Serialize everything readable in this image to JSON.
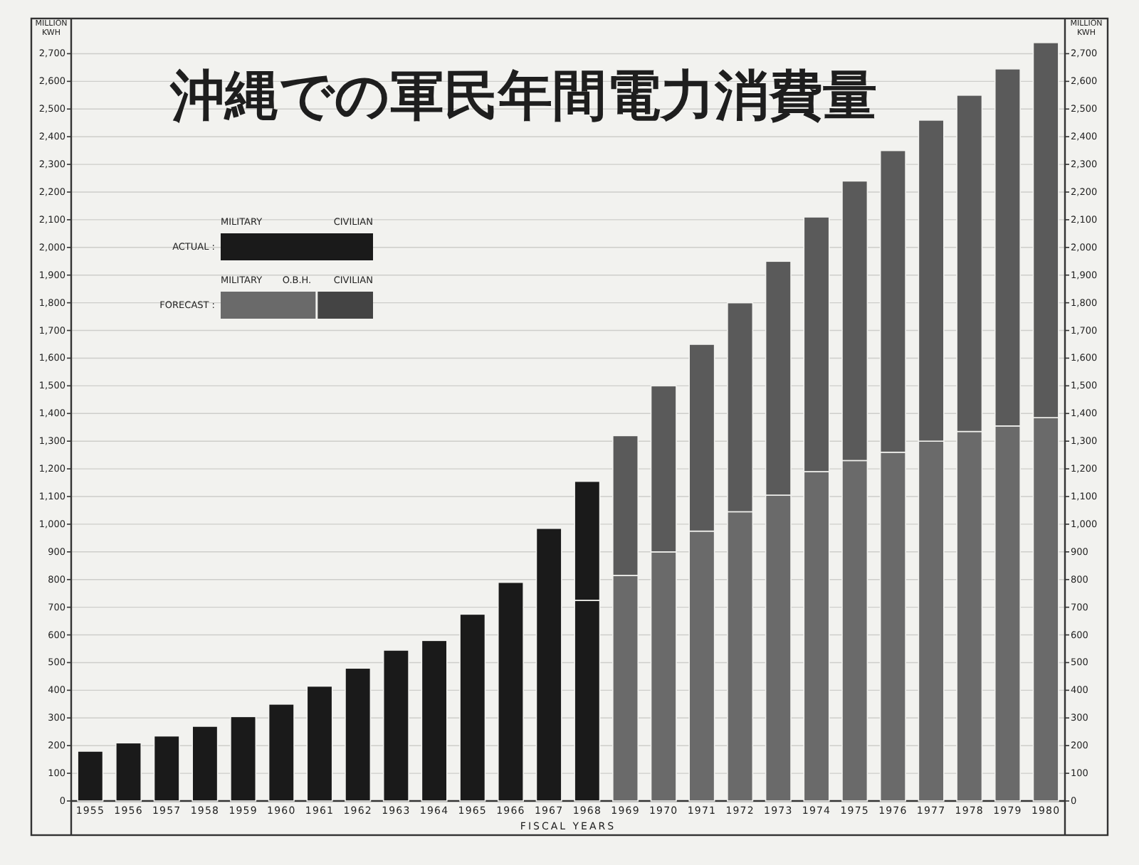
{
  "chart_data": {
    "type": "bar",
    "title": "沖縄での軍民年間電力消費量",
    "xlabel": "FISCAL YEARS",
    "ylabel": "MILLION KWH",
    "y2label": "MILLION KWH",
    "categories": [
      "1955",
      "1956",
      "1957",
      "1958",
      "1959",
      "1960",
      "1961",
      "1962",
      "1963",
      "1964",
      "1965",
      "1966",
      "1967",
      "1968",
      "1969",
      "1970",
      "1971",
      "1972",
      "1973",
      "1974",
      "1975",
      "1976",
      "1977",
      "1978",
      "1979",
      "1980"
    ],
    "stacked": true,
    "series": [
      {
        "color": "#1a1a1a",
        "values": [
          180,
          210,
          235,
          270,
          305,
          350,
          415,
          480,
          545,
          580,
          675,
          790,
          985,
          null,
          null,
          null,
          null,
          null,
          null,
          null,
          null,
          null,
          null,
          null,
          null,
          null
        ]
      },
      {
        "color": "#6a6a6a",
        "colors": [
          null,
          null,
          null,
          null,
          null,
          null,
          null,
          null,
          null,
          null,
          null,
          null,
          null,
          "#1a1a1a",
          "#6a6a6a",
          "#6a6a6a",
          "#6a6a6a",
          "#6a6a6a",
          "#6a6a6a",
          "#6a6a6a",
          "#6a6a6a",
          "#6a6a6a",
          "#6a6a6a",
          "#6a6a6a",
          "#6a6a6a",
          "#6a6a6a"
        ],
        "values": [
          null,
          null,
          null,
          null,
          null,
          null,
          null,
          null,
          null,
          null,
          null,
          null,
          null,
          725,
          815,
          900,
          975,
          1045,
          1105,
          1190,
          1230,
          1260,
          1300,
          1335,
          1355,
          1385
        ]
      },
      {
        "color": "#444444",
        "colors": [
          null,
          null,
          null,
          null,
          null,
          null,
          null,
          null,
          null,
          null,
          null,
          null,
          null,
          "#1a1a1a",
          "#5a5a5a",
          "#5a5a5a",
          "#5a5a5a",
          "#5a5a5a",
          "#5a5a5a",
          "#5a5a5a",
          "#5a5a5a",
          "#5a5a5a",
          "#5a5a5a",
          "#5a5a5a",
          "#5a5a5a",
          "#5a5a5a"
        ],
        "values": [
          null,
          null,
          null,
          null,
          null,
          null,
          null,
          null,
          null,
          null,
          null,
          null,
          null,
          430,
          505,
          600,
          675,
          755,
          845,
          920,
          1010,
          1090,
          1160,
          1215,
          1290,
          1355
        ]
      }
    ],
    "ylim": [
      0,
      2750
    ],
    "yticks": [
      0,
      100,
      200,
      300,
      400,
      500,
      600,
      700,
      800,
      900,
      {
        "value": 1000,
        "label": "1,000"
      },
      {
        "value": 1100,
        "label": "1,100"
      },
      {
        "value": 1200,
        "label": "1,200"
      },
      {
        "value": 1300,
        "label": "1,300"
      },
      {
        "value": 1400,
        "label": "1,400"
      },
      {
        "value": 1500,
        "label": "1,500"
      },
      {
        "value": 1600,
        "label": "1,600"
      },
      {
        "value": 1700,
        "label": "1,700"
      },
      {
        "value": 1800,
        "label": "1,800"
      },
      {
        "value": 1900,
        "label": "1,900"
      },
      {
        "value": 2000,
        "label": "2,000"
      },
      {
        "value": 2100,
        "label": "2,100"
      },
      {
        "value": 2200,
        "label": "2,200"
      },
      {
        "value": 2300,
        "label": "2,300"
      },
      {
        "value": 2400,
        "label": "2,400"
      },
      {
        "value": 2500,
        "label": "2,500"
      },
      {
        "value": 2600,
        "label": "2,600"
      },
      {
        "value": 2700,
        "label": "2,700"
      }
    ],
    "y2lim": [
      0,
      2750
    ],
    "y2ticks": [
      0,
      100,
      200,
      300,
      400,
      500,
      600,
      700,
      800,
      900,
      {
        "value": 1000,
        "label": "1,000"
      },
      {
        "value": 1100,
        "label": "1,100"
      },
      {
        "value": 1200,
        "label": "1,200"
      },
      {
        "value": 1300,
        "label": "1,300"
      },
      {
        "value": 1400,
        "label": "1,400"
      },
      {
        "value": 1500,
        "label": "1,500"
      },
      {
        "value": 1600,
        "label": "1,600"
      },
      {
        "value": 1700,
        "label": "1,700"
      },
      {
        "value": 1800,
        "label": "1,800"
      },
      {
        "value": 1900,
        "label": "1,900"
      },
      {
        "value": 2000,
        "label": "2,000"
      },
      {
        "value": 2100,
        "label": "2,100"
      },
      {
        "value": 2200,
        "label": "2,200"
      },
      {
        "value": 2300,
        "label": "2,300"
      },
      {
        "value": 2400,
        "label": "2,400"
      },
      {
        "value": 2500,
        "label": "2,500"
      },
      {
        "value": 2600,
        "label": "2,600"
      },
      {
        "value": 2700,
        "label": "2,700"
      }
    ],
    "grid": "y",
    "annotations": [
      "ACTUAL :",
      "MILITARY",
      "CIVILIAN",
      "FORECAST :",
      "MILITARY",
      "O.B.H.",
      "CIVILIAN"
    ]
  }
}
